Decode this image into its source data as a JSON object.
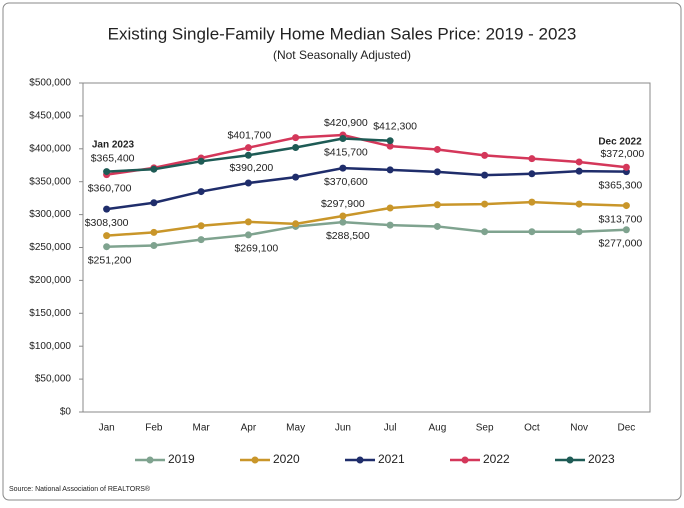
{
  "chart_data": {
    "type": "line",
    "title": "Existing Single-Family Home Median Sales Price: 2019 - 2023",
    "subtitle": "(Not Seasonally Adjusted)",
    "source": "Source: National Association of REALTORS®",
    "annotations": [
      "Jan 2023",
      "Dec 2022"
    ],
    "categories": [
      "Jan",
      "Feb",
      "Mar",
      "Apr",
      "May",
      "Jun",
      "Jul",
      "Aug",
      "Sep",
      "Oct",
      "Nov",
      "Dec"
    ],
    "series": [
      {
        "name": "2019",
        "color": "#7fa38f",
        "values": [
          251200,
          253000,
          262000,
          269100,
          282000,
          288500,
          284000,
          282000,
          274000,
          274000,
          274000,
          277000
        ],
        "value_labels": [
          "$251,200",
          null,
          null,
          "$269,100",
          null,
          "$288,500",
          null,
          null,
          null,
          null,
          null,
          "$277,000"
        ]
      },
      {
        "name": "2020",
        "color": "#c9962a",
        "values": [
          268000,
          273000,
          283000,
          289000,
          286000,
          297900,
          310000,
          315000,
          316000,
          319000,
          316000,
          313700
        ],
        "value_labels": [
          null,
          null,
          null,
          null,
          null,
          "$297,900",
          null,
          null,
          null,
          null,
          null,
          "$313,700"
        ]
      },
      {
        "name": "2021",
        "color": "#1f2d6b",
        "values": [
          308300,
          318000,
          335000,
          348000,
          357000,
          370600,
          368000,
          365000,
          360000,
          362000,
          366000,
          365300
        ],
        "value_labels": [
          "$308,300",
          null,
          null,
          null,
          null,
          "$370,600",
          null,
          null,
          null,
          null,
          null,
          "$365,300"
        ]
      },
      {
        "name": "2022",
        "color": "#d4375a",
        "values": [
          360700,
          371000,
          386000,
          401700,
          417000,
          420900,
          404000,
          399000,
          390000,
          385000,
          380000,
          372000
        ],
        "value_labels": [
          "$360,700",
          null,
          null,
          "$401,700",
          null,
          "$420,900",
          null,
          null,
          null,
          null,
          null,
          "$372,000"
        ]
      },
      {
        "name": "2023",
        "color": "#1e5b55",
        "values": [
          365400,
          369000,
          381000,
          390200,
          402000,
          415700,
          412300,
          null,
          null,
          null,
          null,
          null
        ],
        "value_labels": [
          "$365,400",
          null,
          null,
          "$390,200",
          null,
          "$415,700",
          "$412,300",
          null,
          null,
          null,
          null,
          null
        ]
      }
    ],
    "ylim": [
      0,
      500000
    ],
    "yticks": [
      {
        "value": 0,
        "label": "$0"
      },
      {
        "value": 50000,
        "label": "$50,000"
      },
      {
        "value": 100000,
        "label": "$100,000"
      },
      {
        "value": 150000,
        "label": "$150,000"
      },
      {
        "value": 200000,
        "label": "$200,000"
      },
      {
        "value": 250000,
        "label": "$250,000"
      },
      {
        "value": 300000,
        "label": "$300,000"
      },
      {
        "value": 350000,
        "label": "$350,000"
      },
      {
        "value": 400000,
        "label": "$400,000"
      },
      {
        "value": 450000,
        "label": "$450,000"
      },
      {
        "value": 500000,
        "label": "$500,000"
      }
    ],
    "grid": false
  }
}
